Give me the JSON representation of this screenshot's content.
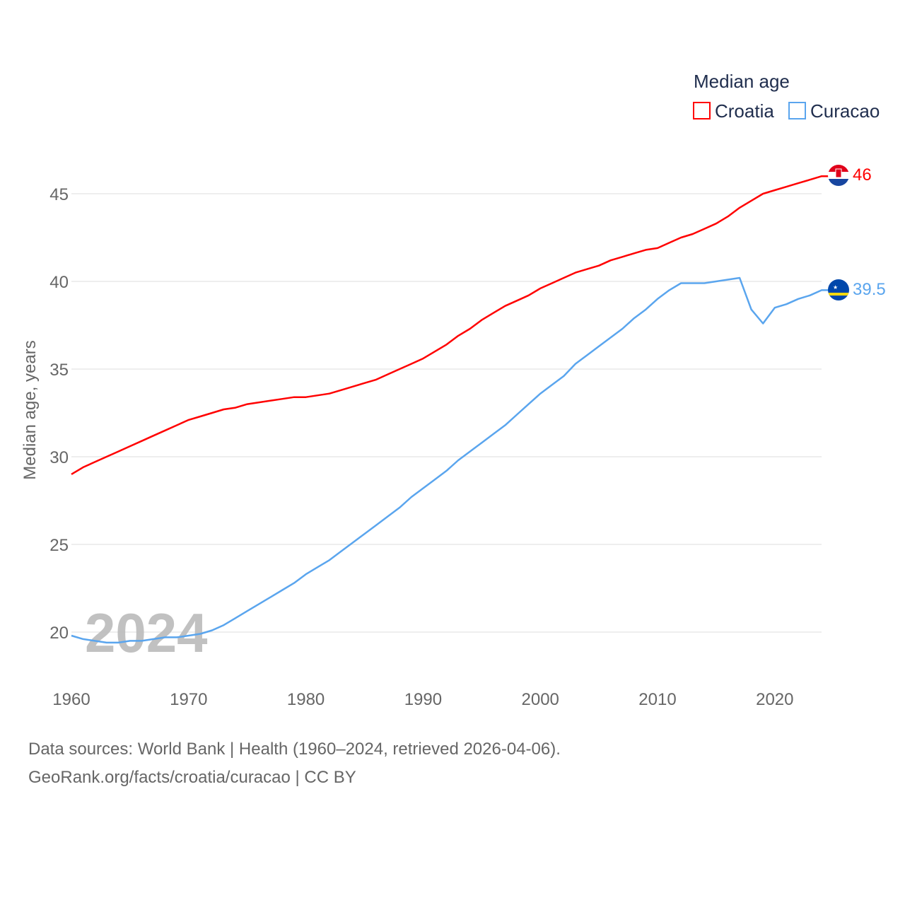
{
  "chart_data": {
    "type": "line",
    "title": "",
    "legend_title": "Median age",
    "legend_placement": "top-right",
    "ylabel": "Median age, years",
    "xlabel": "",
    "ylim": [
      17.5,
      47
    ],
    "xlim": [
      1960,
      2024
    ],
    "yticks": [
      20,
      25,
      30,
      35,
      40,
      45
    ],
    "xticks": [
      1960,
      1970,
      1980,
      1990,
      2000,
      2010,
      2020
    ],
    "grid": true,
    "year_watermark": "2024",
    "x": [
      1960,
      1961,
      1962,
      1963,
      1964,
      1965,
      1966,
      1967,
      1968,
      1969,
      1970,
      1971,
      1972,
      1973,
      1974,
      1975,
      1976,
      1977,
      1978,
      1979,
      1980,
      1981,
      1982,
      1983,
      1984,
      1985,
      1986,
      1987,
      1988,
      1989,
      1990,
      1991,
      1992,
      1993,
      1994,
      1995,
      1996,
      1997,
      1998,
      1999,
      2000,
      2001,
      2002,
      2003,
      2004,
      2005,
      2006,
      2007,
      2008,
      2009,
      2010,
      2011,
      2012,
      2013,
      2014,
      2015,
      2016,
      2017,
      2018,
      2019,
      2020,
      2021,
      2022,
      2023,
      2024
    ],
    "series": [
      {
        "name": "Croatia",
        "color": "#ff0000",
        "end_label": "46",
        "values": [
          29.0,
          29.4,
          29.7,
          30.0,
          30.3,
          30.6,
          30.9,
          31.2,
          31.5,
          31.8,
          32.1,
          32.3,
          32.5,
          32.7,
          32.8,
          33.0,
          33.1,
          33.2,
          33.3,
          33.4,
          33.4,
          33.5,
          33.6,
          33.8,
          34.0,
          34.2,
          34.4,
          34.7,
          35.0,
          35.3,
          35.6,
          36.0,
          36.4,
          36.9,
          37.3,
          37.8,
          38.2,
          38.6,
          38.9,
          39.2,
          39.6,
          39.9,
          40.2,
          40.5,
          40.7,
          40.9,
          41.2,
          41.4,
          41.6,
          41.8,
          41.9,
          42.2,
          42.5,
          42.7,
          43.0,
          43.3,
          43.7,
          44.2,
          44.6,
          45.0,
          45.2,
          45.4,
          45.6,
          45.8,
          46.0
        ]
      },
      {
        "name": "Curacao",
        "color": "#5aa5ee",
        "end_label": "39.5",
        "values": [
          19.8,
          19.6,
          19.5,
          19.4,
          19.4,
          19.5,
          19.5,
          19.6,
          19.7,
          19.7,
          19.8,
          19.9,
          20.1,
          20.4,
          20.8,
          21.2,
          21.6,
          22.0,
          22.4,
          22.8,
          23.3,
          23.7,
          24.1,
          24.6,
          25.1,
          25.6,
          26.1,
          26.6,
          27.1,
          27.7,
          28.2,
          28.7,
          29.2,
          29.8,
          30.3,
          30.8,
          31.3,
          31.8,
          32.4,
          33.0,
          33.6,
          34.1,
          34.6,
          35.3,
          35.8,
          36.3,
          36.8,
          37.3,
          37.9,
          38.4,
          39.0,
          39.5,
          39.9,
          39.9,
          39.9,
          40.0,
          40.1,
          40.2,
          38.4,
          37.6,
          38.5,
          38.7,
          39.0,
          39.2,
          39.5
        ]
      }
    ]
  },
  "footer": {
    "line1": "Data sources: World Bank | Health (1960–2024, retrieved 2026-04-06).",
    "line2": "GeoRank.org/facts/croatia/curacao | CC BY"
  }
}
